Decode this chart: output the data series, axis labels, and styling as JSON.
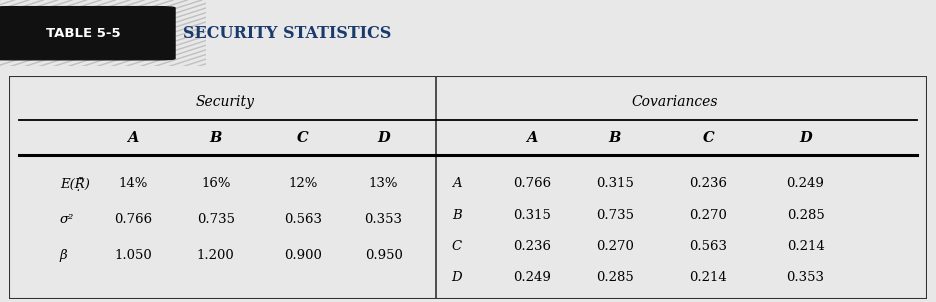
{
  "title_label": "TABLE 5-5",
  "title_text": "SECURITY STATISTICS",
  "section_left_header": "Security",
  "section_right_header": "Covariances",
  "col_headers_left": [
    "A",
    "B",
    "C",
    "D"
  ],
  "col_headers_right": [
    "A",
    "B",
    "C",
    "D"
  ],
  "row_labels_left": [
    "E(Ṝ̃)",
    "σ²",
    "β"
  ],
  "row_labels_right": [
    "A",
    "B",
    "C",
    "D"
  ],
  "data_left": [
    [
      "14%",
      "16%",
      "12%",
      "13%"
    ],
    [
      "0.766",
      "0.735",
      "0.563",
      "0.353"
    ],
    [
      "1.050",
      "1.200",
      "0.900",
      "0.950"
    ]
  ],
  "data_right": [
    [
      "0.766",
      "0.315",
      "0.236",
      "0.249"
    ],
    [
      "0.315",
      "0.735",
      "0.270",
      "0.285"
    ],
    [
      "0.236",
      "0.270",
      "0.563",
      "0.214"
    ],
    [
      "0.249",
      "0.285",
      "0.214",
      "0.353"
    ]
  ],
  "page_bg": "#e8e8e8",
  "hatch_bg": "#d8d8d8",
  "hatch_line_color": "#c0c0c0",
  "badge_bg": "#111111",
  "badge_fg": "#ffffff",
  "title_color": "#1a3a6b",
  "table_bg": "#ffffff",
  "border_color": "#333333"
}
